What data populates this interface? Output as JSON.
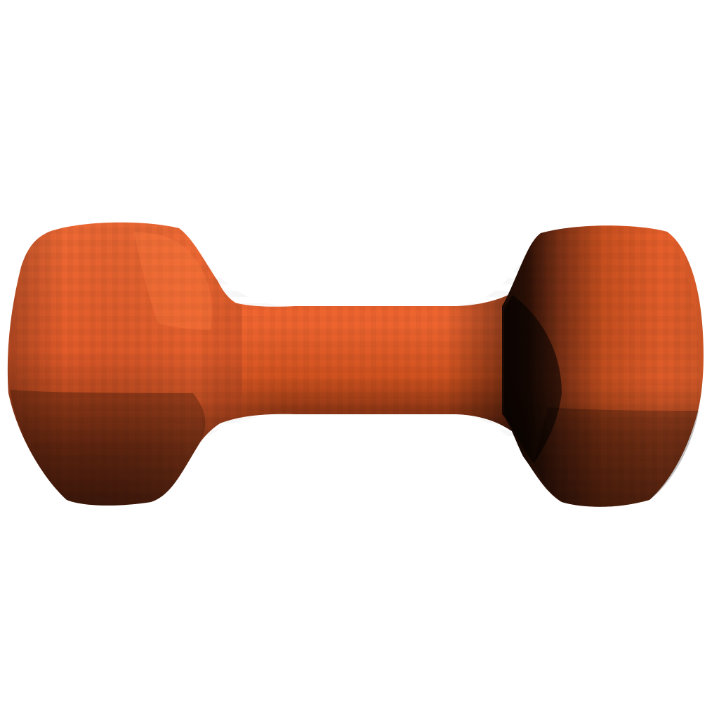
{
  "scene": {
    "background_color": "#ffffff",
    "object": "dumbbell",
    "object_color": "#f26430",
    "highlight_color": "#ff6a35",
    "shadow_color": "#000000",
    "render_style": "faceted-3d-shading"
  }
}
